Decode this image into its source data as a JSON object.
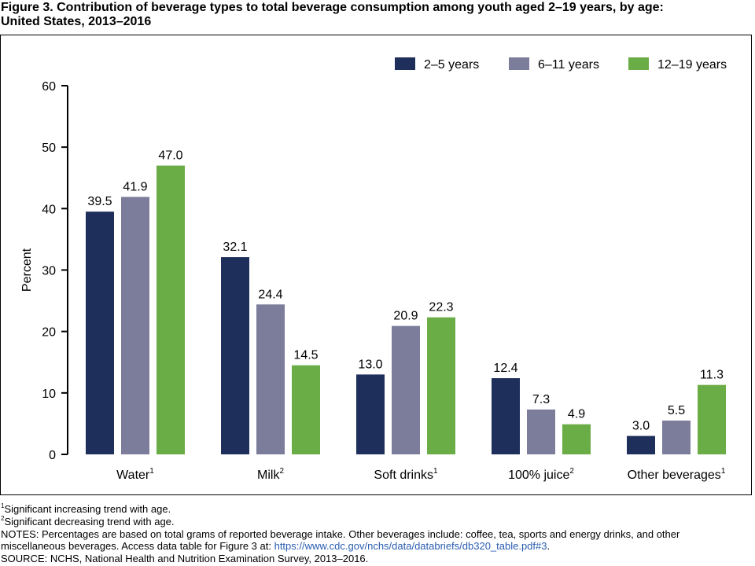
{
  "figure": {
    "title_line1": "Figure 3. Contribution of beverage types to total beverage consumption among youth aged 2–19 years, by age:",
    "title_line2": "United States, 2013–2016"
  },
  "notes": {
    "footnote1_mark": "1",
    "footnote1_text": "Significant increasing trend with age.",
    "footnote2_mark": "2",
    "footnote2_text": "Significant decreasing trend with age.",
    "notes_line1": "NOTES: Percentages are based on total grams of reported beverage intake. Other beverages include: coffee, tea, sports and energy drinks, and other",
    "notes_line2_text": "miscellaneous beverages. Access data table for Figure 3 at: ",
    "notes_link": "https://www.cdc.gov/nchs/data/databriefs/db320_table.pdf#3",
    "notes_line2_end": ".",
    "source": "SOURCE: NCHS, National Health and Nutrition Examination Survey, 2013–2016."
  },
  "chart_data": {
    "type": "bar",
    "ylabel": "Percent",
    "ylim": [
      0,
      60
    ],
    "yticks": [
      0,
      10,
      20,
      30,
      40,
      50,
      60
    ],
    "grid": false,
    "legend_position": "top-right",
    "categories": [
      "Water",
      "Milk",
      "Soft drinks",
      "100% juice",
      "Other beverages"
    ],
    "category_superscripts": [
      "1",
      "2",
      "1",
      "2",
      "1"
    ],
    "series": [
      {
        "name": "2–5 years",
        "color": "#1f2f5b",
        "values": [
          39.5,
          32.1,
          13.0,
          12.4,
          3.0
        ]
      },
      {
        "name": "6–11 years",
        "color": "#7b7d9b",
        "values": [
          41.9,
          24.4,
          20.9,
          7.3,
          5.5
        ]
      },
      {
        "name": "12–19 years",
        "color": "#6aac45",
        "values": [
          47.0,
          14.5,
          22.3,
          4.9,
          11.3
        ]
      }
    ]
  }
}
